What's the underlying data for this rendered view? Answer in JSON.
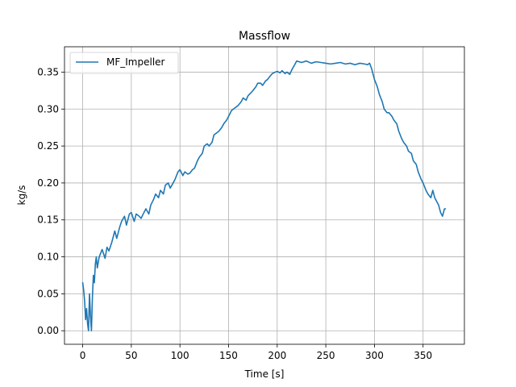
{
  "chart_data": {
    "type": "line",
    "title": "Massflow",
    "xlabel": "Time [s]",
    "ylabel": "kg/s",
    "xlim": [
      -18.7,
      392.5
    ],
    "ylim": [
      -0.0183,
      0.3843
    ],
    "xticks": [
      0,
      50,
      100,
      150,
      200,
      250,
      300,
      350
    ],
    "yticks": [
      0.0,
      0.05,
      0.1,
      0.15,
      0.2,
      0.25,
      0.3,
      0.35
    ],
    "xtick_labels": [
      "0",
      "50",
      "100",
      "150",
      "200",
      "250",
      "300",
      "350"
    ],
    "ytick_labels": [
      "0.00",
      "0.05",
      "0.10",
      "0.15",
      "0.20",
      "0.25",
      "0.30",
      "0.35"
    ],
    "grid": true,
    "legend_position": "upper-left",
    "series": [
      {
        "name": "MF_Impeller",
        "color": "#1f77b4",
        "x": [
          0,
          1,
          2,
          3,
          4,
          5,
          6,
          7,
          8,
          9,
          10,
          11,
          12,
          13,
          14,
          15,
          17,
          20,
          23,
          25,
          27,
          30,
          33,
          35,
          38,
          40,
          43,
          45,
          48,
          50,
          53,
          55,
          58,
          60,
          63,
          65,
          68,
          70,
          73,
          75,
          78,
          80,
          83,
          85,
          88,
          90,
          93,
          95,
          98,
          100,
          103,
          105,
          108,
          110,
          113,
          115,
          118,
          120,
          123,
          125,
          128,
          130,
          133,
          135,
          138,
          140,
          143,
          145,
          148,
          150,
          153,
          155,
          158,
          160,
          163,
          165,
          168,
          170,
          173,
          175,
          178,
          180,
          183,
          185,
          188,
          190,
          193,
          195,
          198,
          200,
          203,
          205,
          208,
          210,
          213,
          215,
          218,
          220,
          225,
          230,
          235,
          240,
          245,
          250,
          255,
          260,
          265,
          270,
          275,
          280,
          285,
          290,
          293,
          295,
          297,
          300,
          303,
          305,
          308,
          310,
          313,
          315,
          318,
          320,
          323,
          325,
          328,
          330,
          333,
          335,
          338,
          340,
          343,
          345,
          348,
          350,
          353,
          355,
          358,
          360,
          362,
          364,
          366,
          368,
          370,
          372,
          373
        ],
        "y": [
          0.065,
          0.055,
          0.04,
          0.015,
          0.03,
          0.01,
          0.0,
          0.05,
          0.02,
          0.0,
          0.045,
          0.075,
          0.065,
          0.09,
          0.1,
          0.085,
          0.1,
          0.11,
          0.098,
          0.113,
          0.108,
          0.12,
          0.135,
          0.125,
          0.14,
          0.148,
          0.155,
          0.143,
          0.158,
          0.16,
          0.148,
          0.158,
          0.155,
          0.152,
          0.16,
          0.165,
          0.158,
          0.17,
          0.178,
          0.185,
          0.18,
          0.19,
          0.185,
          0.197,
          0.2,
          0.193,
          0.2,
          0.205,
          0.215,
          0.218,
          0.21,
          0.215,
          0.212,
          0.213,
          0.218,
          0.22,
          0.23,
          0.235,
          0.24,
          0.25,
          0.253,
          0.25,
          0.255,
          0.265,
          0.268,
          0.27,
          0.275,
          0.28,
          0.285,
          0.29,
          0.298,
          0.3,
          0.303,
          0.305,
          0.31,
          0.315,
          0.312,
          0.318,
          0.322,
          0.325,
          0.33,
          0.335,
          0.335,
          0.332,
          0.338,
          0.34,
          0.345,
          0.348,
          0.35,
          0.351,
          0.349,
          0.352,
          0.348,
          0.35,
          0.347,
          0.353,
          0.36,
          0.365,
          0.363,
          0.365,
          0.362,
          0.364,
          0.363,
          0.362,
          0.361,
          0.362,
          0.363,
          0.361,
          0.362,
          0.36,
          0.362,
          0.361,
          0.36,
          0.362,
          0.355,
          0.34,
          0.33,
          0.32,
          0.31,
          0.3,
          0.295,
          0.295,
          0.29,
          0.285,
          0.28,
          0.27,
          0.26,
          0.255,
          0.25,
          0.243,
          0.24,
          0.23,
          0.225,
          0.215,
          0.205,
          0.2,
          0.19,
          0.185,
          0.18,
          0.19,
          0.18,
          0.175,
          0.17,
          0.16,
          0.155,
          0.165,
          0.165
        ]
      }
    ]
  }
}
